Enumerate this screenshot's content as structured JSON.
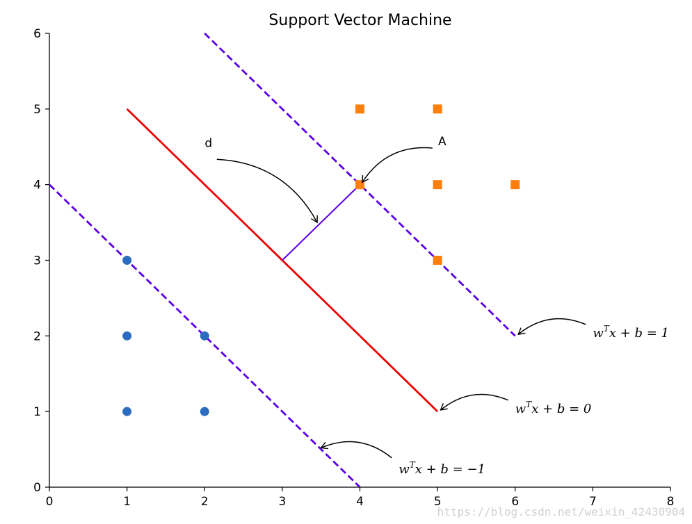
{
  "chart_data": {
    "type": "scatter",
    "title": "Support Vector Machine",
    "xlim": [
      0,
      8
    ],
    "ylim": [
      0,
      6
    ],
    "x_ticks": [
      "0",
      "1",
      "2",
      "3",
      "4",
      "5",
      "6",
      "7",
      "8"
    ],
    "y_ticks": [
      "0",
      "1",
      "2",
      "3",
      "4",
      "5",
      "6"
    ],
    "grid": false,
    "series": [
      {
        "marker": "circle",
        "color": "#2b6cbf",
        "points": [
          [
            1,
            1
          ],
          [
            1,
            2
          ],
          [
            1,
            3
          ],
          [
            2,
            1
          ],
          [
            2,
            2
          ]
        ]
      },
      {
        "marker": "square",
        "color": "#ff7f0e",
        "points": [
          [
            4,
            4
          ],
          [
            4,
            5
          ],
          [
            5,
            3
          ],
          [
            5,
            4
          ],
          [
            5,
            5
          ],
          [
            6,
            4
          ]
        ]
      }
    ],
    "lines": [
      {
        "id": "plus-margin",
        "points": [
          [
            2,
            6
          ],
          [
            6,
            2
          ]
        ],
        "color": "#5b00ea",
        "style": "dashed"
      },
      {
        "id": "decision",
        "points": [
          [
            1,
            5
          ],
          [
            5,
            1
          ]
        ],
        "color": "#ee0000",
        "style": "solid"
      },
      {
        "id": "minus-margin",
        "points": [
          [
            0,
            4
          ],
          [
            4,
            0
          ]
        ],
        "color": "#5b00ea",
        "style": "dashed"
      },
      {
        "id": "distance",
        "points": [
          [
            3,
            3
          ],
          [
            4,
            4
          ]
        ],
        "color": "#5b00ea",
        "style": "solid"
      }
    ],
    "annotations": [
      {
        "id": "d",
        "text": "d",
        "text_at": [
          2.05,
          4.5
        ],
        "arrow_to": [
          3.45,
          3.5
        ]
      },
      {
        "id": "A",
        "text": "A",
        "text_at": [
          5.06,
          4.52
        ],
        "arrow_to": [
          4.03,
          4.03
        ]
      },
      {
        "id": "eq-plus",
        "base": "w",
        "sup": "T",
        "rest": "x + b = 1",
        "text_at": [
          7.0,
          2.04
        ],
        "arrow_to": [
          6.04,
          2.02
        ]
      },
      {
        "id": "eq-zero",
        "base": "w",
        "sup": "T",
        "rest": "x + b = 0",
        "text_at": [
          6.0,
          1.04
        ],
        "arrow_to": [
          5.04,
          1.02
        ]
      },
      {
        "id": "eq-minus",
        "base": "w",
        "sup": "T",
        "rest": "x + b = −1",
        "text_at": [
          4.5,
          0.24
        ],
        "arrow_to": [
          3.5,
          0.52
        ]
      }
    ]
  },
  "watermark": "https://blog.csdn.net/weixin_42430904"
}
